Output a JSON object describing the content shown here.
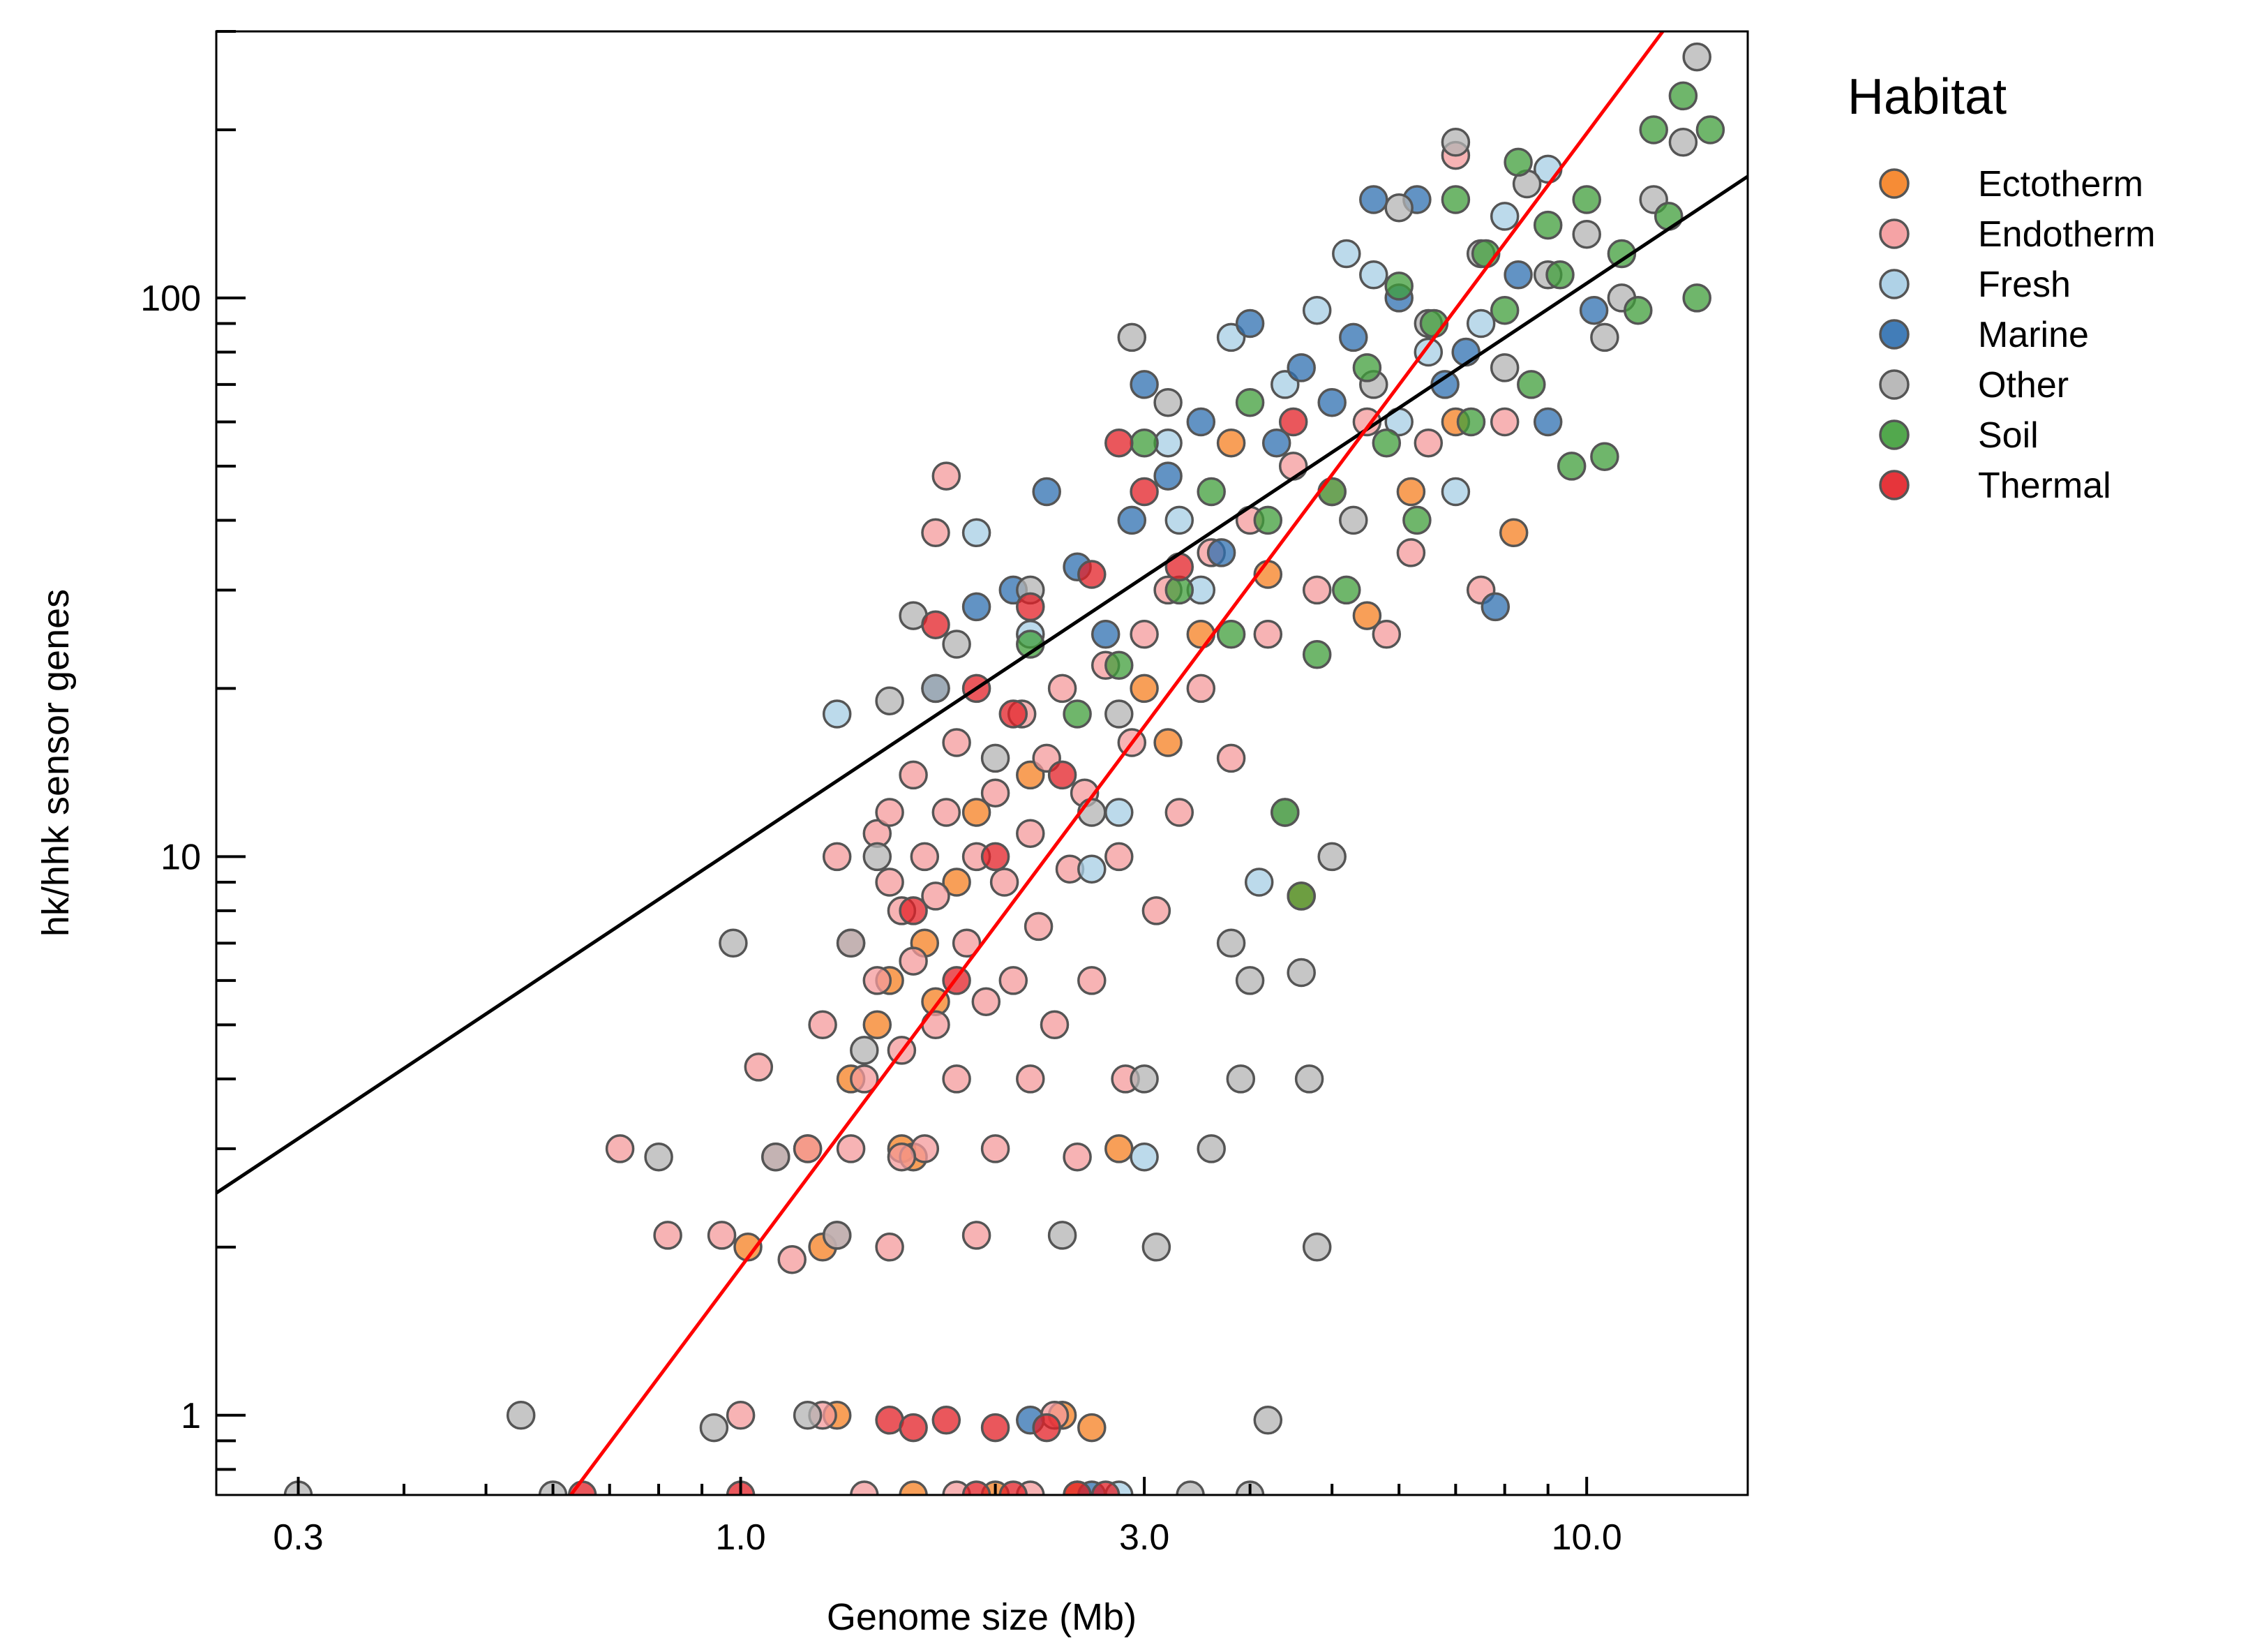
{
  "chart_data": {
    "type": "scatter",
    "xlabel": "Genome size (Mb)",
    "ylabel": "hk/hhk sensor genes",
    "x_scale": "log",
    "y_scale": "log",
    "xlim": [
      0.24,
      15.5
    ],
    "ylim": [
      0.72,
      300
    ],
    "x_ticks": [
      0.3,
      1.0,
      3.0,
      10.0
    ],
    "x_tick_labels": [
      "0.3",
      "1.0",
      "3.0",
      "10.0"
    ],
    "y_ticks": [
      1,
      10,
      100
    ],
    "y_tick_labels": [
      "1",
      "10",
      "100"
    ],
    "grid": false,
    "legend": {
      "title": "Habitat",
      "position": "outside right",
      "entries": [
        {
          "name": "Ectotherm",
          "color": "#f57f20"
        },
        {
          "name": "Endotherm",
          "color": "#f4999b"
        },
        {
          "name": "Fresh",
          "color": "#a6cde4"
        },
        {
          "name": "Marine",
          "color": "#2e6fb0"
        },
        {
          "name": "Other",
          "color": "#b3b3b3"
        },
        {
          "name": "Soil",
          "color": "#3f9e3a"
        },
        {
          "name": "Thermal",
          "color": "#e31f26"
        }
      ]
    },
    "fit_lines": [
      {
        "color": "#000000",
        "points": [
          [
            0.24,
            2.5
          ],
          [
            15.5,
            165
          ]
        ]
      },
      {
        "color": "#ff0000",
        "points": [
          [
            0.63,
            0.72
          ],
          [
            12.3,
            300
          ]
        ]
      }
    ],
    "series": [
      {
        "name": "Ectotherm",
        "color": "#f57f20",
        "points": [
          [
            1.02,
            2.0
          ],
          [
            1.2,
            3.0
          ],
          [
            1.25,
            2.0
          ],
          [
            1.35,
            4.0
          ],
          [
            1.45,
            5.0
          ],
          [
            1.5,
            6.0
          ],
          [
            1.55,
            3.0
          ],
          [
            1.6,
            2.9
          ],
          [
            1.65,
            7.0
          ],
          [
            1.7,
            5.5
          ],
          [
            1.8,
            9.0
          ],
          [
            1.9,
            12.0
          ],
          [
            2.2,
            14.0
          ],
          [
            2.4,
            1.0
          ],
          [
            2.6,
            0.95
          ],
          [
            2.8,
            3.0
          ],
          [
            3.0,
            20.0
          ],
          [
            3.2,
            16.0
          ],
          [
            3.5,
            25.0
          ],
          [
            3.8,
            55.0
          ],
          [
            4.2,
            32.0
          ],
          [
            4.6,
            8.5
          ],
          [
            5.5,
            27.0
          ],
          [
            6.2,
            45.0
          ],
          [
            7.0,
            60.0
          ],
          [
            8.2,
            38.0
          ],
          [
            1.3,
            1.0
          ],
          [
            1.6,
            0.72
          ],
          [
            2.0,
            0.72
          ],
          [
            2.5,
            0.72
          ]
        ]
      },
      {
        "name": "Endotherm",
        "color": "#f4999b",
        "points": [
          [
            0.72,
            3.0
          ],
          [
            0.82,
            2.1
          ],
          [
            1.0,
            1.0
          ],
          [
            1.05,
            4.2
          ],
          [
            1.1,
            2.9
          ],
          [
            1.15,
            1.9
          ],
          [
            1.2,
            3.0
          ],
          [
            1.25,
            5.0
          ],
          [
            1.3,
            10.0
          ],
          [
            1.3,
            2.1
          ],
          [
            1.35,
            7.0
          ],
          [
            1.35,
            3.0
          ],
          [
            1.4,
            4.0
          ],
          [
            1.45,
            11.0
          ],
          [
            1.45,
            6.0
          ],
          [
            1.5,
            12.0
          ],
          [
            1.5,
            9.0
          ],
          [
            1.5,
            2.0
          ],
          [
            1.55,
            4.5
          ],
          [
            1.55,
            8.0
          ],
          [
            1.6,
            14.0
          ],
          [
            1.6,
            6.5
          ],
          [
            1.65,
            10.0
          ],
          [
            1.65,
            3.0
          ],
          [
            1.7,
            5.0
          ],
          [
            1.7,
            8.5
          ],
          [
            1.75,
            12.0
          ],
          [
            1.8,
            4.0
          ],
          [
            1.8,
            16.0
          ],
          [
            1.85,
            7.0
          ],
          [
            1.9,
            10.0
          ],
          [
            1.9,
            2.1
          ],
          [
            1.95,
            5.5
          ],
          [
            2.0,
            13.0
          ],
          [
            2.0,
            3.0
          ],
          [
            2.05,
            9.0
          ],
          [
            2.1,
            6.0
          ],
          [
            2.15,
            18.0
          ],
          [
            2.2,
            11.0
          ],
          [
            2.2,
            4.0
          ],
          [
            2.25,
            7.5
          ],
          [
            2.3,
            15.0
          ],
          [
            2.35,
            5.0
          ],
          [
            2.4,
            20.0
          ],
          [
            2.45,
            9.5
          ],
          [
            2.5,
            2.9
          ],
          [
            2.55,
            13.0
          ],
          [
            2.6,
            6.0
          ],
          [
            2.7,
            22.0
          ],
          [
            2.8,
            10.0
          ],
          [
            2.85,
            4.0
          ],
          [
            2.9,
            16.0
          ],
          [
            3.0,
            25.0
          ],
          [
            3.1,
            8.0
          ],
          [
            3.2,
            30.0
          ],
          [
            3.3,
            12.0
          ],
          [
            3.5,
            20.0
          ],
          [
            3.6,
            35.0
          ],
          [
            3.8,
            15.0
          ],
          [
            4.0,
            40.0
          ],
          [
            4.2,
            25.0
          ],
          [
            4.5,
            50.0
          ],
          [
            4.8,
            30.0
          ],
          [
            5.0,
            45.0
          ],
          [
            5.5,
            60.0
          ],
          [
            5.8,
            25.0
          ],
          [
            6.2,
            35.0
          ],
          [
            6.5,
            55.0
          ],
          [
            7.0,
            180.0
          ],
          [
            7.5,
            30.0
          ],
          [
            8.0,
            60.0
          ],
          [
            1.75,
            48.0
          ],
          [
            1.7,
            38.0
          ],
          [
            1.25,
            1.0
          ],
          [
            1.4,
            0.72
          ],
          [
            1.8,
            0.72
          ],
          [
            2.2,
            0.72
          ],
          [
            0.95,
            2.1
          ],
          [
            1.55,
            2.9
          ],
          [
            2.35,
            1.0
          ]
        ]
      },
      {
        "name": "Fresh",
        "color": "#a6cde4",
        "points": [
          [
            1.3,
            18.0
          ],
          [
            1.9,
            38.0
          ],
          [
            2.2,
            25.0
          ],
          [
            2.6,
            9.5
          ],
          [
            2.8,
            12.0
          ],
          [
            3.0,
            2.9
          ],
          [
            3.2,
            55.0
          ],
          [
            3.5,
            30.0
          ],
          [
            3.8,
            85.0
          ],
          [
            4.1,
            9.0
          ],
          [
            4.4,
            70.0
          ],
          [
            4.8,
            95.0
          ],
          [
            5.2,
            120.0
          ],
          [
            5.6,
            110.0
          ],
          [
            6.0,
            60.0
          ],
          [
            6.5,
            80.0
          ],
          [
            7.0,
            45.0
          ],
          [
            7.5,
            90.0
          ],
          [
            8.0,
            140.0
          ],
          [
            9.0,
            170.0
          ],
          [
            2.8,
            0.72
          ],
          [
            3.3,
            40.0
          ]
        ]
      },
      {
        "name": "Marine",
        "color": "#2e6fb0",
        "points": [
          [
            1.7,
            20.0
          ],
          [
            1.9,
            28.0
          ],
          [
            2.1,
            30.0
          ],
          [
            2.3,
            45.0
          ],
          [
            2.5,
            33.0
          ],
          [
            2.7,
            25.0
          ],
          [
            2.9,
            40.0
          ],
          [
            3.0,
            70.0
          ],
          [
            3.2,
            48.0
          ],
          [
            3.5,
            60.0
          ],
          [
            3.7,
            35.0
          ],
          [
            4.0,
            90.0
          ],
          [
            4.3,
            55.0
          ],
          [
            4.6,
            75.0
          ],
          [
            5.0,
            65.0
          ],
          [
            5.3,
            85.0
          ],
          [
            5.6,
            150.0
          ],
          [
            6.0,
            100.0
          ],
          [
            6.3,
            150.0
          ],
          [
            6.8,
            70.0
          ],
          [
            7.2,
            80.0
          ],
          [
            7.8,
            28.0
          ],
          [
            8.3,
            110.0
          ],
          [
            9.0,
            60.0
          ],
          [
            10.2,
            95.0
          ],
          [
            2.2,
            0.98
          ],
          [
            2.6,
            0.72
          ]
        ]
      },
      {
        "name": "Other",
        "color": "#b3b3b3",
        "points": [
          [
            0.3,
            0.72
          ],
          [
            0.55,
            1.0
          ],
          [
            0.6,
            0.72
          ],
          [
            0.8,
            2.9
          ],
          [
            0.93,
            0.95
          ],
          [
            0.98,
            7.0
          ],
          [
            1.1,
            2.9
          ],
          [
            1.2,
            1.0
          ],
          [
            1.3,
            2.1
          ],
          [
            1.35,
            7.0
          ],
          [
            1.4,
            4.5
          ],
          [
            1.45,
            10.0
          ],
          [
            1.5,
            19.0
          ],
          [
            1.6,
            27.0
          ],
          [
            1.7,
            20.0
          ],
          [
            1.8,
            24.0
          ],
          [
            2.0,
            15.0
          ],
          [
            2.2,
            30.0
          ],
          [
            2.4,
            2.1
          ],
          [
            2.6,
            12.0
          ],
          [
            2.8,
            18.0
          ],
          [
            2.9,
            85.0
          ],
          [
            3.0,
            4.0
          ],
          [
            3.1,
            2.0
          ],
          [
            3.2,
            65.0
          ],
          [
            3.4,
            0.72
          ],
          [
            3.6,
            3.0
          ],
          [
            3.8,
            7.0
          ],
          [
            3.9,
            4.0
          ],
          [
            4.0,
            6.0
          ],
          [
            4.2,
            0.98
          ],
          [
            4.4,
            12.0
          ],
          [
            4.6,
            6.2
          ],
          [
            4.7,
            4.0
          ],
          [
            4.8,
            2.0
          ],
          [
            5.0,
            10.0
          ],
          [
            5.3,
            40.0
          ],
          [
            5.6,
            70.0
          ],
          [
            6.0,
            145.0
          ],
          [
            6.5,
            90.0
          ],
          [
            7.0,
            190.0
          ],
          [
            7.5,
            120.0
          ],
          [
            8.0,
            75.0
          ],
          [
            8.5,
            160.0
          ],
          [
            9.0,
            110.0
          ],
          [
            10.0,
            130.0
          ],
          [
            11.0,
            100.0
          ],
          [
            12.0,
            150.0
          ],
          [
            13.0,
            190.0
          ],
          [
            13.5,
            270.0
          ],
          [
            10.5,
            85.0
          ],
          [
            4.0,
            0.72
          ]
        ]
      },
      {
        "name": "Soil",
        "color": "#3f9e3a",
        "points": [
          [
            2.2,
            24.0
          ],
          [
            2.5,
            18.0
          ],
          [
            2.8,
            22.0
          ],
          [
            3.0,
            55.0
          ],
          [
            3.3,
            30.0
          ],
          [
            3.6,
            45.0
          ],
          [
            3.8,
            25.0
          ],
          [
            4.0,
            65.0
          ],
          [
            4.2,
            40.0
          ],
          [
            4.4,
            12.0
          ],
          [
            4.6,
            8.5
          ],
          [
            4.8,
            23.0
          ],
          [
            5.0,
            45.0
          ],
          [
            5.2,
            30.0
          ],
          [
            5.5,
            75.0
          ],
          [
            5.8,
            55.0
          ],
          [
            6.0,
            105.0
          ],
          [
            6.3,
            40.0
          ],
          [
            6.6,
            90.0
          ],
          [
            7.0,
            150.0
          ],
          [
            7.3,
            60.0
          ],
          [
            7.6,
            120.0
          ],
          [
            8.0,
            95.0
          ],
          [
            8.3,
            175.0
          ],
          [
            8.6,
            70.0
          ],
          [
            9.0,
            135.0
          ],
          [
            9.3,
            110.0
          ],
          [
            9.6,
            50.0
          ],
          [
            10.0,
            150.0
          ],
          [
            10.5,
            52.0
          ],
          [
            11.0,
            120.0
          ],
          [
            11.5,
            95.0
          ],
          [
            12.0,
            200.0
          ],
          [
            12.5,
            140.0
          ],
          [
            13.0,
            230.0
          ],
          [
            13.5,
            100.0
          ],
          [
            14.0,
            200.0
          ]
        ]
      },
      {
        "name": "Thermal",
        "color": "#e31f26",
        "points": [
          [
            0.65,
            0.72
          ],
          [
            1.0,
            0.72
          ],
          [
            1.5,
            0.98
          ],
          [
            1.6,
            0.95
          ],
          [
            1.75,
            0.98
          ],
          [
            1.9,
            0.72
          ],
          [
            2.0,
            0.95
          ],
          [
            2.1,
            0.72
          ],
          [
            2.3,
            0.95
          ],
          [
            2.5,
            0.72
          ],
          [
            2.7,
            0.72
          ],
          [
            1.7,
            26.0
          ],
          [
            1.9,
            20.0
          ],
          [
            2.1,
            18.0
          ],
          [
            2.2,
            28.0
          ],
          [
            2.4,
            14.0
          ],
          [
            2.6,
            32.0
          ],
          [
            2.8,
            55.0
          ],
          [
            3.0,
            45.0
          ],
          [
            3.3,
            33.0
          ],
          [
            4.5,
            60.0
          ],
          [
            2.0,
            10.0
          ],
          [
            1.6,
            8.0
          ],
          [
            1.8,
            6.0
          ]
        ]
      }
    ]
  }
}
